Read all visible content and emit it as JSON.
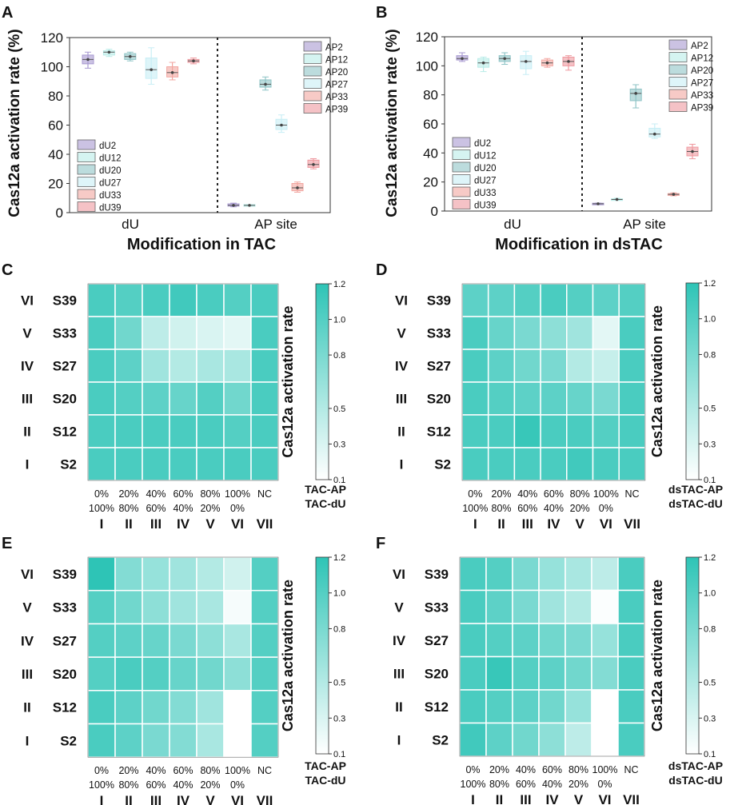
{
  "colors": {
    "teal": "#2ec4b6",
    "grid": "#ffffff",
    "dU2": "#a89ad1",
    "dU12": "#b9ece8",
    "dU20": "#8fc4c6",
    "dU27": "#c8eef5",
    "dU33": "#f2a6a0",
    "dU39": "#ef9aa0"
  },
  "chart_data": [
    {
      "panel": "A",
      "type": "box",
      "ylabel": "Cas12a activation rate (%)",
      "xlabel": "Modification in TAC",
      "categories": [
        "dU",
        "AP site"
      ],
      "ylim": [
        0,
        120
      ],
      "yticks": [
        "0",
        "20",
        "40",
        "60",
        "80",
        "100",
        "120"
      ],
      "legend_left": [
        "dU2",
        "dU12",
        "dU20",
        "dU27",
        "dU33",
        "dU39"
      ],
      "legend_right": [
        "AP2",
        "AP12",
        "AP20",
        "AP27",
        "AP33",
        "AP39"
      ],
      "series": [
        {
          "name": "dU2",
          "group": 0,
          "q1": 102,
          "median": 105,
          "q3": 108,
          "min": 99,
          "max": 110
        },
        {
          "name": "dU12",
          "group": 0,
          "q1": 108,
          "median": 110,
          "q3": 111,
          "min": 107,
          "max": 112
        },
        {
          "name": "dU20",
          "group": 0,
          "q1": 105,
          "median": 107,
          "q3": 109,
          "min": 104,
          "max": 110
        },
        {
          "name": "dU27",
          "group": 0,
          "q1": 92,
          "median": 98,
          "q3": 106,
          "min": 88,
          "max": 113
        },
        {
          "name": "dU33",
          "group": 0,
          "q1": 93,
          "median": 96,
          "q3": 100,
          "min": 91,
          "max": 103
        },
        {
          "name": "dU39",
          "group": 0,
          "q1": 103,
          "median": 104,
          "q3": 105,
          "min": 102,
          "max": 106
        },
        {
          "name": "AP2",
          "group": 1,
          "q1": 4.5,
          "median": 5,
          "q3": 6,
          "min": 4,
          "max": 6.5
        },
        {
          "name": "AP12",
          "group": 1,
          "q1": 4.5,
          "median": 5,
          "q3": 5.5,
          "min": 4.5,
          "max": 5.5
        },
        {
          "name": "AP20",
          "group": 1,
          "q1": 86,
          "median": 88,
          "q3": 91,
          "min": 84,
          "max": 93
        },
        {
          "name": "AP27",
          "group": 1,
          "q1": 57,
          "median": 60,
          "q3": 64,
          "min": 55,
          "max": 67
        },
        {
          "name": "AP33",
          "group": 1,
          "q1": 15,
          "median": 17,
          "q3": 20,
          "min": 14,
          "max": 21
        },
        {
          "name": "AP39",
          "group": 1,
          "q1": 31,
          "median": 33,
          "q3": 36,
          "min": 30,
          "max": 37
        }
      ]
    },
    {
      "panel": "B",
      "type": "box",
      "ylabel": "Cas12a activation rate (%)",
      "xlabel": "Modification in dsTAC",
      "categories": [
        "dU",
        "AP site"
      ],
      "ylim": [
        0,
        120
      ],
      "yticks": [
        "0",
        "20",
        "40",
        "60",
        "80",
        "100",
        "120"
      ],
      "legend_left": [
        "dU2",
        "dU12",
        "dU20",
        "dU27",
        "dU33",
        "dU39"
      ],
      "legend_right": [
        "AP2",
        "AP12",
        "AP20",
        "AP27",
        "AP33",
        "AP39"
      ],
      "series": [
        {
          "name": "dU2",
          "group": 0,
          "q1": 104,
          "median": 105,
          "q3": 107,
          "min": 103,
          "max": 109
        },
        {
          "name": "dU12",
          "group": 0,
          "q1": 99,
          "median": 102,
          "q3": 105,
          "min": 96,
          "max": 106
        },
        {
          "name": "dU20",
          "group": 0,
          "q1": 103,
          "median": 105,
          "q3": 107,
          "min": 101,
          "max": 109
        },
        {
          "name": "dU27",
          "group": 0,
          "q1": 98,
          "median": 103,
          "q3": 107,
          "min": 94,
          "max": 110
        },
        {
          "name": "dU33",
          "group": 0,
          "q1": 100,
          "median": 102,
          "q3": 104,
          "min": 99,
          "max": 105
        },
        {
          "name": "dU39",
          "group": 0,
          "q1": 100,
          "median": 103,
          "q3": 106,
          "min": 97,
          "max": 107
        },
        {
          "name": "AP2",
          "group": 1,
          "q1": 4.8,
          "median": 5,
          "q3": 5.4,
          "min": 4.5,
          "max": 5.5
        },
        {
          "name": "AP12",
          "group": 1,
          "q1": 7.8,
          "median": 8,
          "q3": 8.4,
          "min": 7.5,
          "max": 8.8
        },
        {
          "name": "AP20",
          "group": 1,
          "q1": 76,
          "median": 81,
          "q3": 84,
          "min": 71,
          "max": 87
        },
        {
          "name": "AP27",
          "group": 1,
          "q1": 51,
          "median": 53,
          "q3": 57,
          "min": 50,
          "max": 60
        },
        {
          "name": "AP33",
          "group": 1,
          "q1": 10.8,
          "median": 11.5,
          "q3": 12,
          "min": 10.5,
          "max": 12.5
        },
        {
          "name": "AP39",
          "group": 1,
          "q1": 38,
          "median": 41,
          "q3": 44,
          "min": 36,
          "max": 46
        }
      ]
    },
    {
      "panel": "C",
      "type": "heatmap",
      "rows": [
        "S39",
        "S33",
        "S27",
        "S20",
        "S12",
        "S2"
      ],
      "row_roman": [
        "VI",
        "V",
        "IV",
        "III",
        "II",
        "I"
      ],
      "col_top": [
        "0%",
        "20%",
        "40%",
        "60%",
        "80%",
        "100%",
        "NC"
      ],
      "col_bottom": [
        "100%",
        "80%",
        "60%",
        "40%",
        "20%",
        "0%",
        ""
      ],
      "col_roman": [
        "I",
        "II",
        "III",
        "IV",
        "V",
        "VI",
        "VII"
      ],
      "colorbar_label": "Cas12a activation rate",
      "colorbar_ticks": [
        "1.2",
        "1.0",
        "0.8",
        "0.5",
        "0.3",
        "0.1"
      ],
      "vmin": 0.1,
      "vmax": 1.2,
      "legend_top": "TAC-AP",
      "legend_bottom": "TAC-dU",
      "values": [
        [
          1.05,
          1.0,
          1.05,
          1.1,
          1.05,
          1.0,
          1.05
        ],
        [
          1.05,
          0.85,
          0.45,
          0.35,
          0.3,
          0.25,
          1.05
        ],
        [
          1.05,
          0.95,
          0.6,
          0.5,
          0.55,
          0.55,
          1.05
        ],
        [
          1.05,
          1.0,
          0.95,
          0.9,
          1.0,
          0.85,
          1.05
        ],
        [
          1.05,
          1.05,
          1.05,
          1.05,
          1.05,
          1.0,
          1.05
        ],
        [
          1.05,
          1.05,
          1.05,
          1.05,
          1.05,
          1.05,
          1.05
        ]
      ]
    },
    {
      "panel": "D",
      "type": "heatmap",
      "rows": [
        "S39",
        "S33",
        "S27",
        "S20",
        "S12",
        "S2"
      ],
      "row_roman": [
        "VI",
        "V",
        "IV",
        "III",
        "II",
        "I"
      ],
      "col_top": [
        "0%",
        "20%",
        "40%",
        "60%",
        "80%",
        "100%",
        "NC"
      ],
      "col_bottom": [
        "100%",
        "80%",
        "60%",
        "40%",
        "20%",
        "0%",
        ""
      ],
      "col_roman": [
        "I",
        "II",
        "III",
        "IV",
        "V",
        "VI",
        "VII"
      ],
      "colorbar_label": "Cas12a activation rate",
      "colorbar_ticks": [
        "1.2",
        "1.0",
        "0.8",
        "0.5",
        "0.3",
        "0.1"
      ],
      "vmin": 0.1,
      "vmax": 1.2,
      "legend_top": "dsTAC-AP",
      "legend_bottom": "dsTAC-dU",
      "values": [
        [
          0.95,
          0.95,
          1.0,
          1.05,
          1.0,
          0.95,
          1.0
        ],
        [
          1.05,
          0.9,
          0.8,
          0.7,
          0.6,
          0.25,
          1.05
        ],
        [
          1.05,
          0.95,
          0.85,
          0.8,
          0.5,
          0.4,
          1.05
        ],
        [
          1.05,
          1.0,
          0.95,
          0.95,
          0.9,
          0.8,
          1.05
        ],
        [
          1.05,
          1.05,
          1.15,
          1.05,
          1.05,
          1.0,
          1.05
        ],
        [
          1.05,
          1.05,
          1.05,
          1.05,
          1.1,
          1.05,
          1.05
        ]
      ]
    },
    {
      "panel": "E",
      "type": "heatmap",
      "rows": [
        "S39",
        "S33",
        "S27",
        "S20",
        "S12",
        "S2"
      ],
      "row_roman": [
        "VI",
        "V",
        "IV",
        "III",
        "II",
        "I"
      ],
      "col_top": [
        "0%",
        "20%",
        "40%",
        "60%",
        "80%",
        "100%",
        "NC"
      ],
      "col_bottom": [
        "100%",
        "80%",
        "60%",
        "40%",
        "20%",
        "0%",
        ""
      ],
      "col_roman": [
        "I",
        "II",
        "III",
        "IV",
        "V",
        "VI",
        "VII"
      ],
      "colorbar_label": "Cas12a activation rate",
      "colorbar_ticks": [
        "1.2",
        "1.0",
        "0.8",
        "0.5",
        "0.3",
        "0.1"
      ],
      "vmin": 0.1,
      "vmax": 1.2,
      "legend_top": "TAC-AP",
      "legend_bottom": "TAC-dU",
      "values": [
        [
          1.2,
          0.75,
          0.65,
          0.6,
          0.5,
          0.35,
          1.0
        ],
        [
          1.0,
          0.85,
          0.7,
          0.6,
          0.55,
          0.15,
          1.0
        ],
        [
          1.0,
          0.95,
          0.9,
          0.8,
          0.7,
          0.55,
          1.0
        ],
        [
          1.0,
          1.05,
          1.0,
          0.9,
          0.85,
          0.7,
          1.0
        ],
        [
          1.05,
          0.95,
          0.85,
          0.75,
          0.6,
          0.1,
          1.0
        ],
        [
          1.05,
          0.95,
          0.8,
          0.75,
          0.55,
          0.1,
          1.0
        ]
      ]
    },
    {
      "panel": "F",
      "type": "heatmap",
      "rows": [
        "S39",
        "S33",
        "S27",
        "S20",
        "S12",
        "S2"
      ],
      "row_roman": [
        "VI",
        "V",
        "IV",
        "III",
        "II",
        "I"
      ],
      "col_top": [
        "0%",
        "20%",
        "40%",
        "60%",
        "80%",
        "100%",
        "NC"
      ],
      "col_bottom": [
        "100%",
        "80%",
        "60%",
        "40%",
        "20%",
        "0%",
        ""
      ],
      "col_roman": [
        "I",
        "II",
        "III",
        "IV",
        "V",
        "VI",
        "VII"
      ],
      "colorbar_label": "Cas12a activation rate",
      "colorbar_ticks": [
        "1.2",
        "1.0",
        "0.8",
        "0.5",
        "0.3",
        "0.1"
      ],
      "vmin": 0.1,
      "vmax": 1.2,
      "legend_top": "dsTAC-AP",
      "legend_bottom": "dsTAC-dU",
      "values": [
        [
          1.05,
          1.0,
          0.8,
          0.65,
          0.55,
          0.45,
          1.05
        ],
        [
          1.05,
          0.95,
          0.8,
          0.6,
          0.5,
          0.12,
          1.05
        ],
        [
          1.05,
          1.0,
          0.95,
          0.85,
          0.8,
          0.65,
          1.05
        ],
        [
          1.05,
          1.15,
          1.0,
          0.95,
          0.85,
          0.75,
          1.05
        ],
        [
          1.05,
          1.0,
          0.95,
          0.85,
          0.65,
          0.1,
          1.05
        ],
        [
          1.1,
          0.95,
          0.85,
          0.7,
          0.45,
          0.1,
          1.05
        ]
      ]
    }
  ]
}
